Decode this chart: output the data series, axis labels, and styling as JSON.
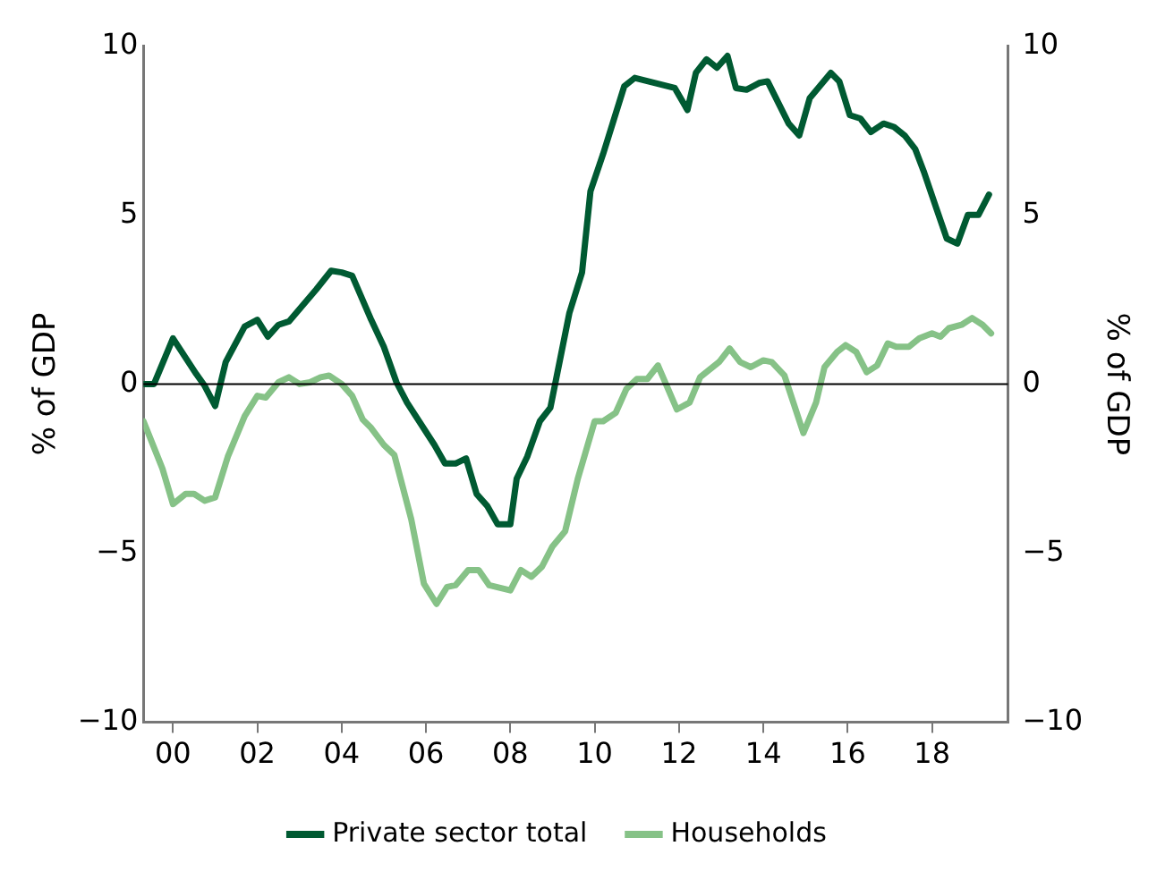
{
  "chart_data": {
    "type": "line",
    "xlabel": null,
    "ylabel": "% of GDP",
    "y2label": "% of GDP",
    "xlim": [
      1999.3,
      2019.8
    ],
    "xticks": [
      {
        "value": 2000,
        "label": "00"
      },
      {
        "value": 2002,
        "label": "02"
      },
      {
        "value": 2004,
        "label": "04"
      },
      {
        "value": 2006,
        "label": "06"
      },
      {
        "value": 2008,
        "label": "08"
      },
      {
        "value": 2010,
        "label": "10"
      },
      {
        "value": 2012,
        "label": "12"
      },
      {
        "value": 2014,
        "label": "14"
      },
      {
        "value": 2016,
        "label": "16"
      },
      {
        "value": 2018,
        "label": "18"
      }
    ],
    "ylim": [
      -10,
      10
    ],
    "yticks": [
      -10,
      -5,
      0,
      5,
      10
    ],
    "y2lim": [
      -10,
      10
    ],
    "y2ticks": [
      -10,
      -5,
      0,
      5,
      10
    ],
    "grid": false,
    "legend": "bottom",
    "marker": "none",
    "line_style": "solid",
    "ref_lines": [
      {
        "axis": "y",
        "value": 0,
        "color": "#000000"
      }
    ],
    "series": [
      {
        "name": "Private sector total",
        "color": "#005a32",
        "x": [
          1999.3,
          1999.55,
          2000.0,
          2000.55,
          2000.75,
          2001.0,
          2001.25,
          2001.7,
          2002.0,
          2002.25,
          2002.5,
          2002.75,
          2003.4,
          2003.75,
          2004.0,
          2004.25,
          2004.7,
          2005.0,
          2005.3,
          2005.55,
          2006.2,
          2006.45,
          2006.7,
          2006.95,
          2007.2,
          2007.45,
          2007.7,
          2008.0,
          2008.15,
          2008.4,
          2008.7,
          2008.95,
          2009.4,
          2009.7,
          2009.9,
          2010.2,
          2010.7,
          2010.95,
          2011.9,
          2012.2,
          2012.4,
          2012.65,
          2012.9,
          2013.15,
          2013.35,
          2013.6,
          2013.9,
          2014.1,
          2014.6,
          2014.85,
          2015.1,
          2015.6,
          2015.8,
          2016.05,
          2016.3,
          2016.55,
          2016.85,
          2017.1,
          2017.35,
          2017.6,
          2017.8,
          2018.1,
          2018.35,
          2018.6,
          2018.85,
          2019.1,
          2019.35
        ],
        "values": [
          0.0,
          0.0,
          1.35,
          0.3,
          -0.05,
          -0.65,
          0.65,
          1.7,
          1.9,
          1.4,
          1.75,
          1.85,
          2.8,
          3.35,
          3.3,
          3.2,
          1.9,
          1.1,
          0.05,
          -0.55,
          -1.8,
          -2.35,
          -2.35,
          -2.2,
          -3.25,
          -3.6,
          -4.15,
          -4.15,
          -2.8,
          -2.15,
          -1.1,
          -0.7,
          2.1,
          3.3,
          5.7,
          6.8,
          8.8,
          9.05,
          8.75,
          8.1,
          9.2,
          9.6,
          9.35,
          9.7,
          8.75,
          8.7,
          8.9,
          8.95,
          7.7,
          7.35,
          8.45,
          9.2,
          8.95,
          7.95,
          7.85,
          7.45,
          7.7,
          7.6,
          7.35,
          6.95,
          6.3,
          5.2,
          4.3,
          4.15,
          5.0,
          5.0,
          5.6
        ]
      },
      {
        "name": "Households",
        "color": "#86c287",
        "x": [
          1999.3,
          1999.75,
          2000.0,
          2000.3,
          2000.5,
          2000.75,
          2001.0,
          2001.3,
          2001.7,
          2002.0,
          2002.2,
          2002.5,
          2002.75,
          2003.0,
          2003.25,
          2003.5,
          2003.7,
          2004.0,
          2004.25,
          2004.5,
          2004.7,
          2005.0,
          2005.25,
          2005.65,
          2005.95,
          2006.25,
          2006.5,
          2006.7,
          2007.0,
          2007.25,
          2007.5,
          2008.0,
          2008.25,
          2008.5,
          2008.75,
          2009.0,
          2009.3,
          2009.6,
          2010.0,
          2010.2,
          2010.5,
          2010.75,
          2011.0,
          2011.25,
          2011.5,
          2011.95,
          2012.25,
          2012.5,
          2012.95,
          2013.2,
          2013.45,
          2013.7,
          2014.0,
          2014.2,
          2014.5,
          2014.95,
          2015.25,
          2015.45,
          2015.75,
          2015.95,
          2016.2,
          2016.45,
          2016.7,
          2016.95,
          2017.15,
          2017.45,
          2017.7,
          2018.0,
          2018.2,
          2018.4,
          2018.7,
          2018.95,
          2019.2,
          2019.4
        ],
        "values": [
          -1.1,
          -2.5,
          -3.55,
          -3.25,
          -3.25,
          -3.45,
          -3.35,
          -2.15,
          -0.95,
          -0.35,
          -0.4,
          0.05,
          0.2,
          0.0,
          0.05,
          0.2,
          0.25,
          0.0,
          -0.35,
          -1.05,
          -1.3,
          -1.8,
          -2.1,
          -4.0,
          -5.9,
          -6.5,
          -6.0,
          -5.95,
          -5.5,
          -5.5,
          -5.95,
          -6.1,
          -5.5,
          -5.7,
          -5.4,
          -4.8,
          -4.35,
          -2.8,
          -1.1,
          -1.1,
          -0.85,
          -0.15,
          0.15,
          0.15,
          0.55,
          -0.75,
          -0.55,
          0.2,
          0.65,
          1.05,
          0.65,
          0.5,
          0.7,
          0.65,
          0.25,
          -1.45,
          -0.55,
          0.5,
          0.95,
          1.15,
          0.95,
          0.35,
          0.55,
          1.2,
          1.1,
          1.1,
          1.35,
          1.5,
          1.4,
          1.65,
          1.75,
          1.95,
          1.75,
          1.5
        ]
      }
    ]
  }
}
